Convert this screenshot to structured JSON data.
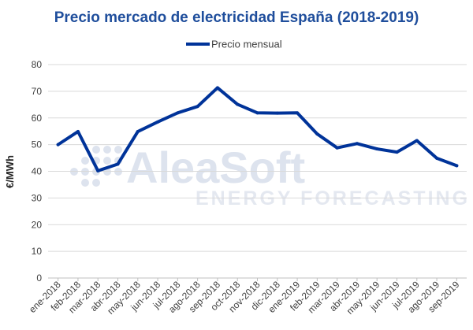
{
  "chart_data": {
    "type": "line",
    "title": "Precio mercado de electricidad España (2018-2019)",
    "ylabel": "€/MWh",
    "xlabel": "",
    "ylim": [
      0,
      80
    ],
    "yticks": [
      0,
      10,
      20,
      30,
      40,
      50,
      60,
      70,
      80
    ],
    "grid": "horizontal",
    "legend_position": "top-center",
    "categories": [
      "ene-2018",
      "feb-2018",
      "mar-2018",
      "abr-2018",
      "may-2018",
      "jun-2018",
      "jul-2018",
      "ago-2018",
      "sep-2018",
      "oct-2018",
      "nov-2018",
      "dic-2018",
      "ene-2019",
      "feb-2019",
      "mar-2019",
      "abr-2019",
      "may-2019",
      "jun-2019",
      "jul-2019",
      "ago-2019",
      "sep-2019"
    ],
    "series": [
      {
        "name": "Precio mensual",
        "color": "#003399",
        "values": [
          50.0,
          54.9,
          40.2,
          42.7,
          54.9,
          58.5,
          61.9,
          64.3,
          71.3,
          65.1,
          61.9,
          61.8,
          61.9,
          54.0,
          48.8,
          50.4,
          48.4,
          47.2,
          51.5,
          44.9,
          42.1
        ]
      }
    ]
  },
  "watermark": {
    "brand": "AleaSoft",
    "tagline": "ENERGY FORECASTING"
  },
  "colors": {
    "title": "#1f4e9c",
    "line": "#003399",
    "grid": "#d9d9d9",
    "watermark": "#dde3ee"
  }
}
